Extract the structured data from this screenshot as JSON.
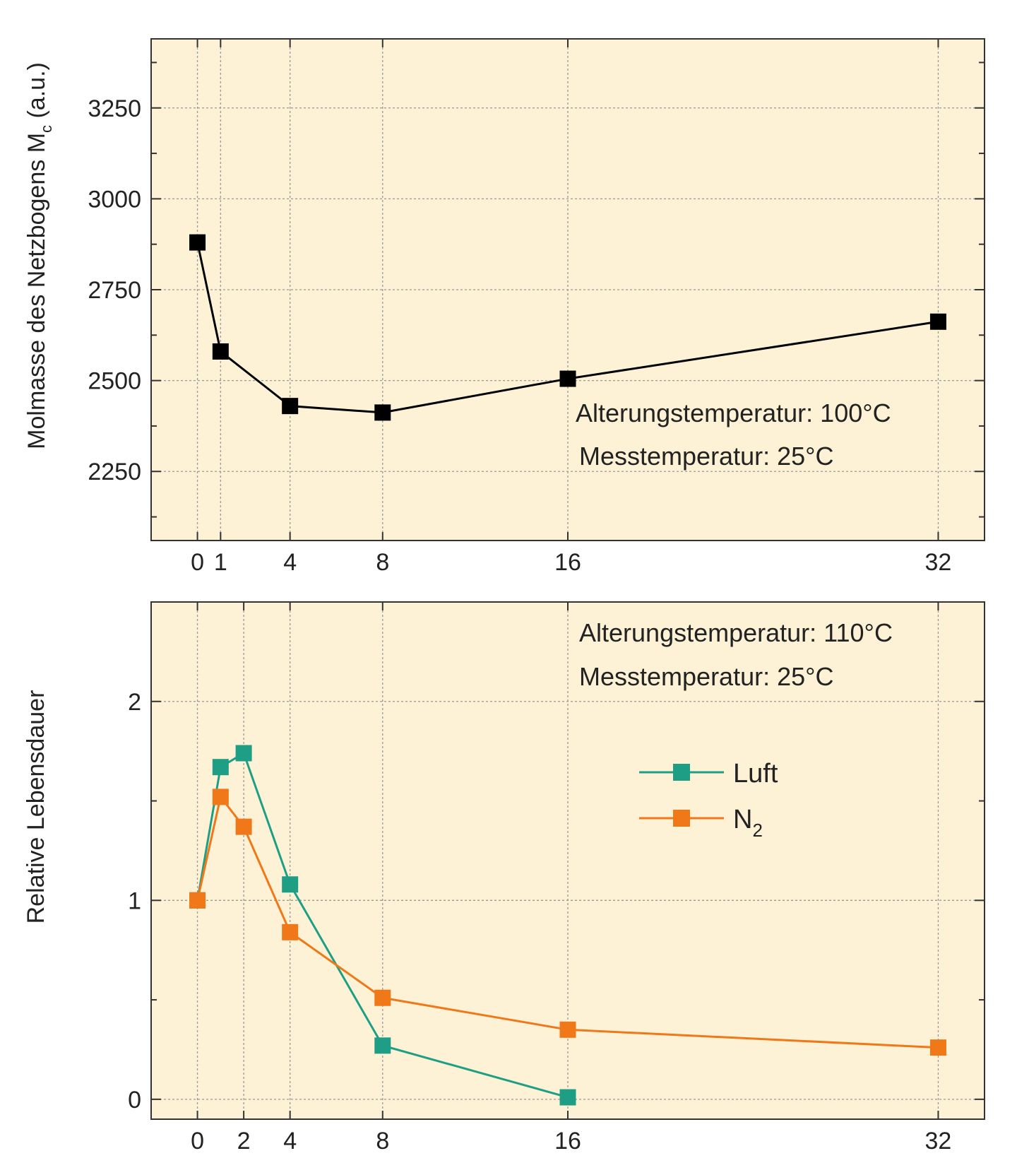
{
  "chart_data": [
    {
      "type": "line",
      "ylabel": "Molmasse des Netzbogens M",
      "ylabel_sub": "c",
      "ylabel_unit": " (a.u.)",
      "xlabel": "",
      "xlim": [
        -2,
        34
      ],
      "ylim": [
        2060,
        3440
      ],
      "x_ticks": [
        0,
        1,
        4,
        8,
        16,
        32
      ],
      "y_ticks": [
        2250,
        2500,
        2750,
        3000,
        3250
      ],
      "grid": true,
      "annotations": [
        "Alterungstemperatur: 100°C",
        "Messtemperatur: 25°C"
      ],
      "series": [
        {
          "color": "#000000",
          "x": [
            0,
            1,
            4,
            8,
            16,
            32
          ],
          "y": [
            2880,
            2580,
            2430,
            2412,
            2505,
            2662
          ]
        }
      ]
    },
    {
      "type": "line",
      "ylabel": "Relative Lebensdauer",
      "xlabel": "",
      "xlim": [
        -2,
        34
      ],
      "ylim": [
        -0.1,
        2.5
      ],
      "x_ticks": [
        0,
        2,
        4,
        8,
        16,
        32
      ],
      "y_ticks": [
        0,
        1,
        2
      ],
      "grid": true,
      "annotations": [
        "Alterungstemperatur: 110°C",
        "Messtemperatur: 25°C"
      ],
      "legend_position": "center-right",
      "series": [
        {
          "name": "Luft",
          "color": "#1f9e86",
          "x": [
            0,
            1,
            2,
            4,
            8,
            16
          ],
          "y": [
            1.0,
            1.67,
            1.74,
            1.08,
            0.27,
            0.01
          ]
        },
        {
          "name": "N",
          "name_sub": "2",
          "color": "#f07818",
          "x": [
            0,
            1,
            2,
            4,
            8,
            16,
            32
          ],
          "y": [
            1.0,
            1.52,
            1.37,
            0.84,
            0.51,
            0.35,
            0.26
          ]
        }
      ]
    }
  ]
}
